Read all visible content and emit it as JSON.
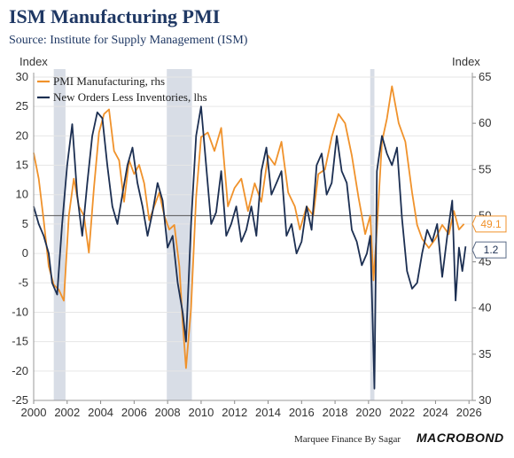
{
  "header": {
    "title": "ISM Manufacturing PMI",
    "subtitle": "Source: Institute for Supply Management (ISM)"
  },
  "footer": {
    "credit": "Marquee Finance By Sagar",
    "brand": "MACROBOND"
  },
  "colors": {
    "pmi": "#f0922b",
    "new_orders": "#1c2f52",
    "recession": "#d8dde6",
    "reference_line": "#555555",
    "grid": "#e6e6e6"
  },
  "chart_data": {
    "type": "line",
    "left_axis_label": "Index",
    "right_axis_label": "Index",
    "left_ylim": [
      -25,
      30
    ],
    "right_ylim": [
      30,
      65
    ],
    "left_ticks": [
      "30",
      "25",
      "20",
      "15",
      "10",
      "5",
      "0",
      "-5",
      "-10",
      "-15",
      "-20",
      "-25"
    ],
    "right_ticks": [
      "65",
      "60",
      "55",
      "50",
      "45",
      "40",
      "35",
      "30"
    ],
    "xlim": [
      2000,
      2026.2
    ],
    "x_ticks": [
      "2000",
      "2002",
      "2004",
      "2006",
      "2008",
      "2010",
      "2012",
      "2014",
      "2016",
      "2018",
      "2020",
      "2022",
      "2024",
      "2026"
    ],
    "grid": "horizontal",
    "legend_position": "top-left",
    "reference_line_right": 50,
    "recession_bands": [
      [
        2001.2,
        2001.9
      ],
      [
        2007.95,
        2009.45
      ],
      [
        2020.1,
        2020.35
      ]
    ],
    "series": [
      {
        "name": "PMI Manufacturing, rhs",
        "axis": "right",
        "last_value": "49.1",
        "x": [
          2000.0,
          2000.3,
          2000.6,
          2000.9,
          2001.2,
          2001.5,
          2001.8,
          2002.1,
          2002.4,
          2002.7,
          2003.0,
          2003.3,
          2003.6,
          2003.9,
          2004.2,
          2004.5,
          2004.8,
          2005.1,
          2005.4,
          2005.7,
          2006.0,
          2006.3,
          2006.6,
          2006.9,
          2007.2,
          2007.5,
          2007.8,
          2008.1,
          2008.4,
          2008.7,
          2008.9,
          2009.1,
          2009.4,
          2009.7,
          2010.0,
          2010.4,
          2010.8,
          2011.2,
          2011.6,
          2012.0,
          2012.4,
          2012.8,
          2013.2,
          2013.6,
          2014.0,
          2014.4,
          2014.8,
          2015.2,
          2015.6,
          2015.9,
          2016.3,
          2016.7,
          2017.0,
          2017.4,
          2017.8,
          2018.2,
          2018.6,
          2019.0,
          2019.4,
          2019.8,
          2020.1,
          2020.3,
          2020.5,
          2020.8,
          2021.1,
          2021.4,
          2021.8,
          2022.2,
          2022.6,
          2022.9,
          2023.2,
          2023.6,
          2024.0,
          2024.4,
          2024.8,
          2025.1,
          2025.4,
          2025.7
        ],
        "values": [
          56.8,
          54,
          49.5,
          44.5,
          42.5,
          42,
          40.8,
          50,
          54,
          51,
          50,
          46,
          53,
          59,
          61,
          61.5,
          57,
          56,
          51.5,
          56,
          54.5,
          55.5,
          53.5,
          49.5,
          51,
          52.5,
          50,
          48.5,
          49,
          44.5,
          38.5,
          33.5,
          40,
          52,
          58.5,
          59,
          57,
          59.5,
          51,
          53,
          54,
          50.5,
          53.5,
          51.5,
          56.5,
          55.5,
          58,
          52.5,
          51,
          48.5,
          51,
          50,
          54.5,
          55,
          58.5,
          61,
          60,
          56.5,
          52,
          48,
          50,
          43,
          48.5,
          58,
          60.5,
          64,
          60,
          58,
          52.5,
          49,
          47.5,
          46.5,
          47.5,
          49,
          48,
          50.5,
          48.5,
          49.1
        ]
      },
      {
        "name": "New Orders Less Inventories, lhs",
        "axis": "left",
        "last_value": "1.2",
        "x": [
          2000.0,
          2000.3,
          2000.6,
          2000.9,
          2001.1,
          2001.4,
          2001.7,
          2002.0,
          2002.3,
          2002.6,
          2002.9,
          2003.2,
          2003.5,
          2003.8,
          2004.1,
          2004.4,
          2004.7,
          2005.0,
          2005.3,
          2005.6,
          2005.9,
          2006.2,
          2006.5,
          2006.8,
          2007.1,
          2007.4,
          2007.7,
          2008.0,
          2008.3,
          2008.6,
          2008.9,
          2009.1,
          2009.4,
          2009.7,
          2010.0,
          2010.3,
          2010.6,
          2010.9,
          2011.2,
          2011.5,
          2011.8,
          2012.1,
          2012.4,
          2012.7,
          2013.0,
          2013.3,
          2013.6,
          2013.9,
          2014.2,
          2014.5,
          2014.8,
          2015.1,
          2015.4,
          2015.7,
          2016.0,
          2016.3,
          2016.6,
          2016.9,
          2017.2,
          2017.5,
          2017.8,
          2018.1,
          2018.4,
          2018.7,
          2019.0,
          2019.3,
          2019.6,
          2019.9,
          2020.1,
          2020.25,
          2020.35,
          2020.5,
          2020.8,
          2021.1,
          2021.4,
          2021.7,
          2022.0,
          2022.3,
          2022.6,
          2022.9,
          2023.2,
          2023.5,
          2023.8,
          2024.1,
          2024.4,
          2024.7,
          2025.0,
          2025.2,
          2025.4,
          2025.6,
          2025.8
        ],
        "values": [
          8,
          5,
          3,
          0,
          -5,
          -7,
          5,
          15,
          22,
          10,
          3,
          12,
          20,
          24,
          23,
          15,
          8,
          5,
          10,
          15,
          18,
          12,
          8,
          3,
          7,
          12,
          9,
          1,
          3,
          -5,
          -10,
          -15,
          5,
          20,
          25,
          15,
          5,
          7,
          14,
          3,
          5,
          8,
          2,
          4,
          8,
          3,
          14,
          18,
          10,
          12,
          14,
          3,
          5,
          0,
          2,
          8,
          4,
          15,
          17,
          10,
          12,
          20,
          14,
          12,
          4,
          2,
          -2,
          0,
          3,
          -12,
          -23,
          14,
          20,
          17,
          15,
          18,
          6,
          -3,
          -6,
          -5,
          0,
          4,
          2,
          5,
          -4,
          3,
          9,
          -8,
          1,
          -3,
          1.2
        ]
      }
    ]
  }
}
